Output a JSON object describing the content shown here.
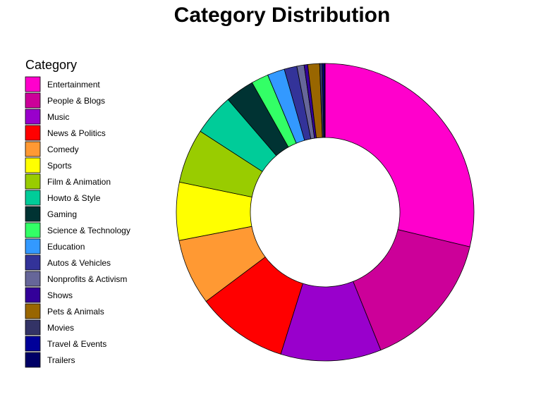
{
  "chart_data": {
    "type": "pie",
    "title": "Category Distribution",
    "legend_title": "Category",
    "legend_position": "left",
    "donut": true,
    "categories": [
      "Entertainment",
      "People & Blogs",
      "Music",
      "News & Politics",
      "Comedy",
      "Sports",
      "Film & Animation",
      "Howto & Style",
      "Gaming",
      "Science & Technology",
      "Education",
      "Autos & Vehicles",
      "Nonprofits & Activism",
      "Shows",
      "Pets & Animals",
      "Movies",
      "Travel & Events",
      "Trailers"
    ],
    "values": [
      29.2,
      15.4,
      11.1,
      10.1,
      7.3,
      6.4,
      6.0,
      4.6,
      3.2,
      1.9,
      1.9,
      1.4,
      0.8,
      0.4,
      1.3,
      0.3,
      0.2,
      0.1
    ],
    "colors": [
      "#FF00CC",
      "#CC0099",
      "#9900CC",
      "#FF0000",
      "#FF9933",
      "#FFFF00",
      "#99CC00",
      "#00CC99",
      "#003333",
      "#33FF66",
      "#3399FF",
      "#333399",
      "#666699",
      "#330099",
      "#996600",
      "#333366",
      "#000099",
      "#000066"
    ]
  }
}
